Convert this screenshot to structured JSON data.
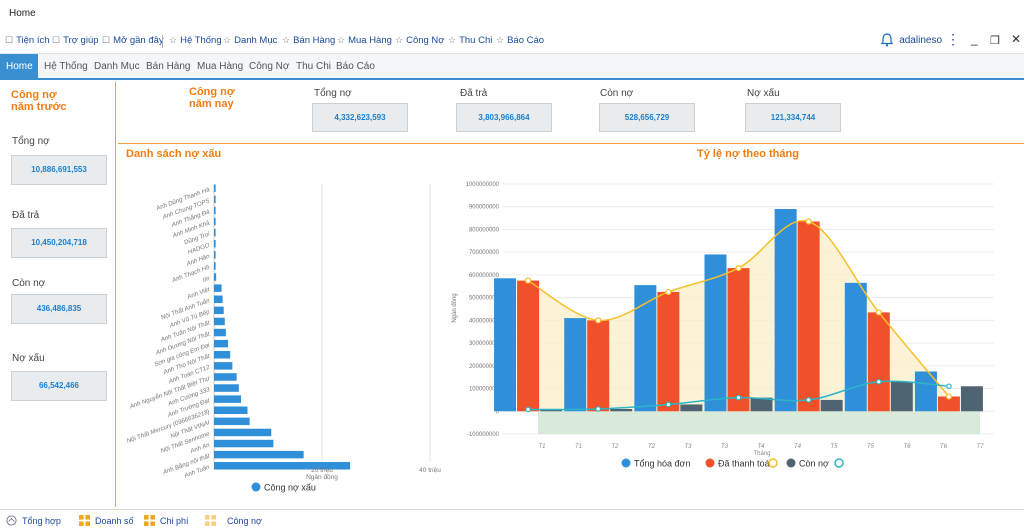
{
  "window": {
    "title": "Home"
  },
  "quicklinks": [
    "Tiện ích",
    "Trợ giúp",
    "Mở gần đây",
    "Hệ Thống",
    "Danh Mục",
    "Bán Hàng",
    "Mua Hàng",
    "Công Nợ",
    "Thu Chi",
    "Báo Cáo"
  ],
  "user": {
    "name": "adalineso"
  },
  "tabs": [
    "Home",
    "Hệ Thống",
    "Danh Mục",
    "Bán Hàng",
    "Mua Hàng",
    "Công Nợ",
    "Thu Chi",
    "Báo Cáo"
  ],
  "last_year": {
    "title_line1": "Công nợ",
    "title_line2": "năm trước",
    "tong_no_label": "Tổng nợ",
    "tong_no": "10,886,691,553",
    "da_tra_label": "Đã trả",
    "da_tra": "10,450,204,718",
    "con_no_label": "Còn nợ",
    "con_no": "436,486,835",
    "no_xau_label": "Nợ xấu",
    "no_xau": "66,542,466"
  },
  "this_year": {
    "title_line1": "Công nợ",
    "title_line2": "năm nay",
    "tong_no_label": "Tổng nợ",
    "tong_no": "4,332,623,593",
    "da_tra_label": "Đã trả",
    "da_tra": "3,803,966,864",
    "con_no_label": "Còn nợ",
    "con_no": "528,656,729",
    "no_xau_label": "Nợ xấu",
    "no_xau": "121,334,744"
  },
  "bad_debt_title": "Danh sách nợ xấu",
  "monthly_title": "Tỷ lệ nợ theo tháng",
  "colors": {
    "accent": "#3a8fd0",
    "orange": "#f07d10",
    "blue_bar": "#2f8fd8",
    "red_bar": "#f0502a",
    "gray_bar": "#4e6472",
    "line_yellow": "#f5c02a",
    "line_teal": "#2bb5c8"
  },
  "chart_data": [
    {
      "type": "bar",
      "orientation": "horizontal",
      "title": "Danh sách nợ xấu",
      "xlabel": "Ngân đồng",
      "x_ticks": [
        "20 triệu",
        "40 triệu"
      ],
      "xlim": [
        0,
        40
      ],
      "categories": [
        "Anh Dũng Thanh Hà",
        "Anh Chung TOPS",
        "Anh Thắng Đá",
        "Anh Minh Khả",
        "Dũng Trọi",
        "HADGO",
        "Anh Hân",
        "Anh Thạch Hồ",
        "tín",
        "Anh Việt",
        "Nội Thất Anh Tuấn",
        "Anh Vũ Tú Bếp",
        "Anh Tuấn Nội Thất",
        "Anh Dương Nội Thất",
        "Sơn gia công Em Đại",
        "Anh Thọ Nội Thất",
        "Anh Toàn CT12",
        "Anh Nguyễn Nội Thất Biệt Thự",
        "Anh Cường 333",
        "Anh Trường Đạt",
        "Nội Thất Mercury (0966636218)",
        "Nội Thất VINAI",
        "Nội Thất Senhome",
        "Anh An",
        "Anh Bằng nội thất",
        "Anh Tuấn"
      ],
      "series": [
        {
          "name": "Công nợ xấu",
          "values": [
            0.3,
            0.3,
            0.3,
            0.3,
            0.3,
            0.3,
            0.3,
            0.3,
            0.4,
            1.4,
            1.6,
            1.8,
            2.0,
            2.2,
            2.6,
            3.0,
            3.4,
            4.2,
            4.6,
            5.0,
            6.2,
            6.6,
            10.6,
            11.0,
            16.6,
            25.2
          ]
        }
      ],
      "legend": "bottom"
    },
    {
      "type": "bar",
      "title": "Tỷ lệ nợ theo tháng",
      "xlabel": "Tháng",
      "ylabel": "Ngàn đồng",
      "ylim": [
        -100000000,
        1000000000
      ],
      "y_ticks": [
        "1000000000",
        "900000000",
        "800000000",
        "700000000",
        "600000000",
        "500000000",
        "400000000",
        "300000000",
        "200000000",
        "100000000",
        "0",
        "-100000000"
      ],
      "categories": [
        "T1",
        "T2",
        "T3",
        "T4",
        "T5",
        "T6",
        "T7"
      ],
      "tick_labels": [
        "T1",
        "T1",
        "T2",
        "T2",
        "T3",
        "T3",
        "T4",
        "T4",
        "T5",
        "T5",
        "T6",
        "T6",
        "T7",
        "T7"
      ],
      "series": [
        {
          "name": "Tổng hóa đơn",
          "kind": "bar",
          "values": [
            585000000,
            410000000,
            555000000,
            690000000,
            890000000,
            565000000,
            175000000
          ]
        },
        {
          "name": "Đã thanh toán",
          "kind": "bar",
          "values": [
            575000000,
            400000000,
            525000000,
            630000000,
            835000000,
            435000000,
            65000000
          ]
        },
        {
          "name": "Còn nợ",
          "kind": "bar",
          "values": [
            8000000,
            10000000,
            30000000,
            60000000,
            50000000,
            130000000,
            110000000
          ]
        },
        {
          "name": "",
          "kind": "line",
          "color": "yellow",
          "values": [
            575000000,
            400000000,
            525000000,
            630000000,
            835000000,
            435000000,
            65000000
          ]
        },
        {
          "name": "",
          "kind": "line",
          "color": "teal",
          "values": [
            8000000,
            10000000,
            30000000,
            60000000,
            50000000,
            130000000,
            110000000
          ]
        }
      ],
      "legend": "bottom"
    }
  ],
  "bottom": [
    "Tổng hợp",
    "Doanh số",
    "Chi phí",
    "Công nợ"
  ]
}
